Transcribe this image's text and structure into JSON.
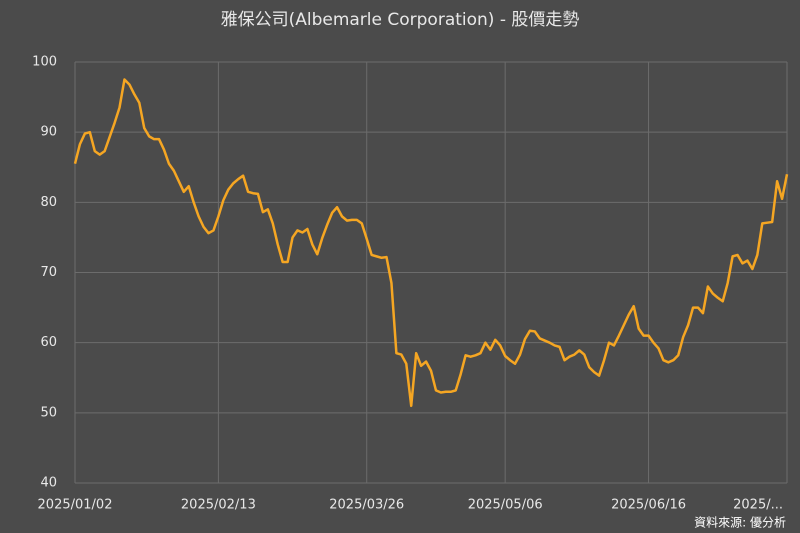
{
  "chart_data": {
    "type": "line",
    "title": "雅保公司(Albemarle Corporation) - 股價走勢",
    "source": "資料來源: 優分析",
    "color": "#f5a623",
    "grid": true,
    "ylim": [
      40,
      100
    ],
    "yticks": [
      40,
      50,
      60,
      70,
      80,
      90,
      100
    ],
    "categories": [
      "2025/01/02",
      null,
      null,
      null,
      null,
      null,
      null,
      null,
      null,
      null,
      null,
      null,
      null,
      null,
      null,
      null,
      null,
      null,
      null,
      null,
      null,
      null,
      null,
      null,
      null,
      null,
      null,
      null,
      null,
      "2025/02/13",
      null,
      null,
      null,
      null,
      null,
      null,
      null,
      null,
      null,
      null,
      null,
      null,
      null,
      null,
      null,
      null,
      null,
      null,
      null,
      null,
      null,
      null,
      null,
      null,
      null,
      null,
      null,
      null,
      null,
      "2025/03/26",
      null,
      null,
      null,
      null,
      null,
      null,
      null,
      null,
      null,
      null,
      null,
      null,
      null,
      null,
      null,
      null,
      null,
      null,
      null,
      null,
      null,
      null,
      null,
      null,
      null,
      null,
      null,
      "2025/05/06",
      null,
      null,
      null,
      null,
      null,
      null,
      null,
      null,
      null,
      null,
      null,
      null,
      null,
      null,
      null,
      null,
      null,
      null,
      null,
      null,
      null,
      null,
      null,
      null,
      null,
      null,
      null,
      null,
      "2025/06/16",
      null,
      null,
      null,
      null,
      null,
      null,
      null,
      null,
      null,
      null,
      null,
      null,
      null,
      null,
      null,
      null,
      null,
      null,
      null,
      null,
      null,
      null,
      null,
      null,
      null,
      null,
      null,
      "2025/..."
    ],
    "values": [
      85.5,
      88.3,
      89.8,
      90,
      87.3,
      86.8,
      87.3,
      89.3,
      91.3,
      93.5,
      97.5,
      96.8,
      95.4,
      94.2,
      90.6,
      89.4,
      89,
      89,
      87.5,
      85.5,
      84.5,
      83,
      81.5,
      82.3,
      80,
      78,
      76.5,
      75.6,
      76,
      78,
      80.3,
      81.8,
      82.7,
      83.3,
      83.8,
      81.5,
      81.3,
      81.2,
      78.6,
      79,
      77,
      74,
      71.5,
      71.5,
      75,
      76,
      75.7,
      76.2,
      74,
      72.6,
      74.9,
      76.8,
      78.5,
      79.3,
      78,
      77.4,
      77.5,
      77.5,
      77,
      74.8,
      72.5,
      72.3,
      72.1,
      72.2,
      68.5,
      58.5,
      58.3,
      57,
      51,
      58.5,
      56.7,
      57.3,
      56,
      53.2,
      52.9,
      53,
      53,
      53.2,
      55.5,
      58.2,
      58,
      58.2,
      58.5,
      60,
      59,
      60.4,
      59.6,
      58.1,
      57.5,
      57,
      58.3,
      60.5,
      61.7,
      61.6,
      60.6,
      60.3,
      60,
      59.6,
      59.4,
      57.5,
      58,
      58.3,
      58.9,
      58.3,
      56.5,
      55.8,
      55.3,
      57.5,
      60,
      59.6,
      61,
      62.5,
      64,
      65.2,
      62,
      61,
      61,
      60,
      59.2,
      57.5,
      57.2,
      57.5,
      58.2,
      60.8,
      62.5,
      65,
      65,
      64.2,
      68,
      67,
      66.4,
      65.9,
      68.5,
      72.3,
      72.5,
      71.3,
      71.7,
      70.5,
      72.5,
      77,
      77.1,
      77.2,
      83,
      80.5,
      84
    ]
  }
}
